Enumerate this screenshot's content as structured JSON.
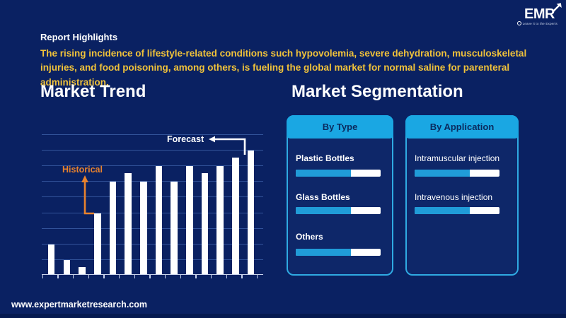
{
  "page": {
    "background": "#0A2162",
    "footer_url": "www.expertmarketresearch.com"
  },
  "logo": {
    "name": "EMR",
    "tagline": "Leave it to the Experts"
  },
  "report_highlights": {
    "title": "Report Highlights",
    "body": "The rising incidence of lifestyle-related conditions such hypovolemia, severe dehydration, musculoskeletal injuries, and food poisoning, among others, is fueling the global market for normal saline for parenteral administration.",
    "body_color": "#F0C23A"
  },
  "market_trend": {
    "title": "Market Trend"
  },
  "chart_data": {
    "type": "bar",
    "title": "Market Trend",
    "values": [
      21,
      10,
      5,
      43,
      66,
      72,
      66,
      77,
      66,
      77,
      72,
      77,
      83,
      88
    ],
    "num_bars": 14,
    "x_tick_count": 15,
    "x_axis_labels_visible": false,
    "y_axis_labels_visible": false,
    "ylim": [
      0,
      100
    ],
    "grid": "horizontal",
    "gridline_count": 9,
    "bar_color": "#FFFFFF",
    "gridline_color": "#33549B",
    "axis_color": "#C9D4EC",
    "annotations": [
      {
        "label": "Historical",
        "color": "#E8822D",
        "target_bar_index": 3
      },
      {
        "label": "Forecast",
        "color": "#FFFFFF",
        "target_bar_index": 12
      }
    ]
  },
  "market_segmentation": {
    "title": "Market Segmentation",
    "header_bg": "#1AA7E3",
    "panel_border": "#2FAAE2",
    "bar_fill": "#209CD8",
    "panels": [
      {
        "header": "By Type",
        "items": [
          {
            "label": "Plastic Bottles",
            "percent": 65
          },
          {
            "label": "Glass Bottles",
            "percent": 65
          },
          {
            "label": "Others",
            "percent": 65
          }
        ]
      },
      {
        "header": "By Application",
        "items": [
          {
            "label": "Intramuscular injection",
            "percent": 65
          },
          {
            "label": "Intravenous injection",
            "percent": 65
          }
        ]
      }
    ]
  }
}
